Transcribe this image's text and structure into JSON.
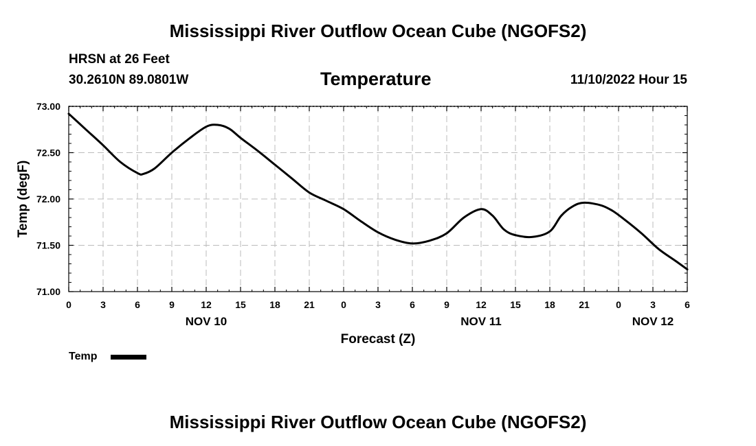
{
  "header": {
    "title": "Mississippi River Outflow Ocean Cube (NGOFS2)",
    "station": "HRSN at 26 Feet",
    "coords": "30.2610N  89.0801W",
    "forecast_time": "11/10/2022 Hour 15"
  },
  "footer": {
    "title": "Mississippi River Outflow Ocean Cube (NGOFS2)"
  },
  "colors": {
    "line": "#000000",
    "grid": "#bbbbbb"
  },
  "chart_data": {
    "type": "line",
    "title": "Temperature",
    "xlabel": "Forecast (Z)",
    "ylabel": "Temp (degF)",
    "x_unit": "hours from 00Z Nov 10",
    "xlim": [
      0,
      54
    ],
    "ylim": [
      71.0,
      73.0
    ],
    "y_ticks": [
      71.0,
      71.5,
      72.0,
      72.5,
      73.0
    ],
    "y_tick_labels": [
      "71.00",
      "71.50",
      "72.00",
      "72.50",
      "73.00"
    ],
    "x_ticks": [
      0,
      3,
      6,
      9,
      12,
      15,
      18,
      21,
      24,
      27,
      30,
      33,
      36,
      39,
      42,
      45,
      48,
      51,
      54
    ],
    "x_tick_labels": [
      "0",
      "3",
      "6",
      "9",
      "12",
      "15",
      "18",
      "21",
      "0",
      "3",
      "6",
      "9",
      "12",
      "15",
      "18",
      "21",
      "0",
      "3",
      "6"
    ],
    "date_labels": [
      {
        "x": 12,
        "label": "NOV 10"
      },
      {
        "x": 36,
        "label": "NOV 11"
      },
      {
        "x": 51,
        "label": "NOV 12"
      }
    ],
    "grid": true,
    "legend": {
      "placement": "bottom-left",
      "label": "Temp"
    },
    "series": [
      {
        "name": "Temp",
        "x": [
          0,
          1.5,
          3,
          4.5,
          6,
          6.5,
          7.5,
          9,
          10.5,
          12,
          13,
          14,
          15,
          16.5,
          18,
          19.5,
          21,
          22.5,
          24,
          25.5,
          27,
          28.5,
          30,
          31.5,
          33,
          34.5,
          36,
          37,
          38,
          39,
          40.5,
          42,
          43,
          44,
          45,
          46.5,
          47.5,
          48.5,
          50,
          51.5,
          53,
          54
        ],
        "y": [
          72.92,
          72.75,
          72.58,
          72.4,
          72.28,
          72.27,
          72.33,
          72.5,
          72.65,
          72.78,
          72.8,
          72.76,
          72.66,
          72.52,
          72.37,
          72.22,
          72.07,
          71.98,
          71.89,
          71.76,
          71.64,
          71.56,
          71.52,
          71.55,
          71.63,
          71.8,
          71.89,
          71.82,
          71.67,
          71.61,
          71.59,
          71.65,
          71.82,
          71.92,
          71.96,
          71.93,
          71.87,
          71.78,
          71.63,
          71.46,
          71.33,
          71.24
        ]
      }
    ]
  }
}
